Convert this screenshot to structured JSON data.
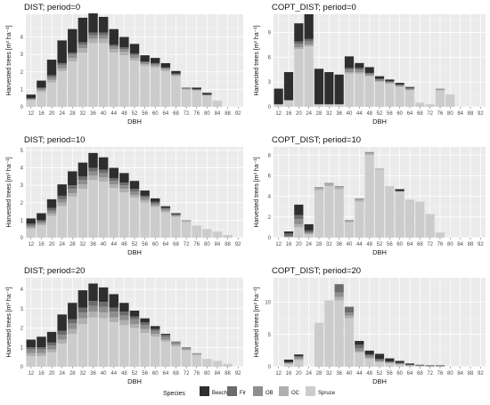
{
  "chart_data": [
    {
      "type": "bar",
      "stacked": true,
      "title": "DIST; period=0",
      "xlabel": "DBH",
      "ylabel": "Harvested trees [m³ ha⁻¹]",
      "ylim": [
        0,
        5.3
      ],
      "yticks": [
        0,
        1,
        2,
        3,
        4
      ],
      "categories": [
        "12",
        "16",
        "20",
        "24",
        "28",
        "32",
        "36",
        "40",
        "44",
        "48",
        "52",
        "56",
        "60",
        "64",
        "68",
        "72",
        "76",
        "80",
        "84",
        "88",
        "92"
      ],
      "series": [
        {
          "name": "Spruce",
          "values": [
            0.4,
            0.85,
            1.4,
            2.05,
            2.6,
            3.1,
            3.65,
            3.65,
            3.1,
            2.95,
            2.65,
            2.35,
            2.25,
            2.05,
            1.75,
            1.0,
            0.95,
            0.65,
            0.35,
            0,
            0
          ]
        },
        {
          "name": "OC",
          "values": [
            0,
            0.1,
            0.15,
            0.15,
            0.2,
            0.25,
            0.25,
            0.25,
            0.2,
            0.2,
            0.15,
            0.1,
            0.1,
            0.1,
            0.05,
            0,
            0,
            0,
            0,
            0,
            0
          ]
        },
        {
          "name": "OB",
          "values": [
            0.05,
            0.1,
            0.15,
            0.2,
            0.2,
            0.2,
            0.2,
            0.2,
            0.15,
            0.15,
            0.15,
            0.1,
            0.1,
            0.05,
            0.05,
            0.05,
            0.05,
            0.05,
            0,
            0,
            0
          ]
        },
        {
          "name": "Fir",
          "values": [
            0.05,
            0.05,
            0.1,
            0.1,
            0.1,
            0.15,
            0.15,
            0.15,
            0.1,
            0.1,
            0.1,
            0.05,
            0.05,
            0.05,
            0.05,
            0.05,
            0,
            0,
            0,
            0,
            0
          ]
        },
        {
          "name": "Beech",
          "values": [
            0.2,
            0.4,
            0.9,
            1.3,
            1.35,
            1.4,
            1.1,
            0.9,
            0.9,
            0.6,
            0.55,
            0.35,
            0.3,
            0.25,
            0.15,
            0,
            0.1,
            0.1,
            0,
            0,
            0
          ]
        }
      ]
    },
    {
      "type": "bar",
      "stacked": true,
      "title": "COPT_DIST; period=0",
      "xlabel": "DBH",
      "ylabel": "Harvested trees [m³ ha⁻¹]",
      "ylim": [
        0,
        11.2
      ],
      "yticks": [
        0,
        3,
        6,
        9
      ],
      "categories": [
        "12",
        "16",
        "20",
        "24",
        "28",
        "32",
        "36",
        "40",
        "44",
        "48",
        "52",
        "56",
        "60",
        "64",
        "68",
        "72",
        "76",
        "80",
        "84",
        "88",
        "92"
      ],
      "series": [
        {
          "name": "Spruce",
          "values": [
            0.3,
            0.8,
            7.0,
            7.3,
            0.3,
            0.3,
            0.3,
            4.0,
            4.0,
            3.7,
            3.0,
            2.8,
            2.4,
            2.0,
            0.5,
            0.3,
            2.0,
            1.5,
            0,
            0,
            0
          ]
        },
        {
          "name": "OC",
          "values": [
            0,
            0,
            0.2,
            0.2,
            0,
            0,
            0,
            0.2,
            0.2,
            0.1,
            0.1,
            0.1,
            0.1,
            0.1,
            0,
            0,
            0.1,
            0,
            0,
            0,
            0
          ]
        },
        {
          "name": "OB",
          "values": [
            0,
            0,
            0.4,
            0.4,
            0,
            0,
            0,
            0.3,
            0.3,
            0.2,
            0.2,
            0.1,
            0.1,
            0.1,
            0,
            0,
            0.1,
            0,
            0,
            0,
            0
          ]
        },
        {
          "name": "Fir",
          "values": [
            0,
            0,
            0.3,
            0.3,
            0,
            0,
            0,
            0.2,
            0.2,
            0.1,
            0.1,
            0.1,
            0.1,
            0.1,
            0,
            0,
            0,
            0,
            0,
            0,
            0
          ]
        },
        {
          "name": "Beech",
          "values": [
            1.9,
            3.4,
            2.2,
            3.0,
            4.3,
            3.9,
            3.6,
            1.4,
            0.6,
            0.7,
            0.3,
            0.2,
            0.2,
            0.1,
            0,
            0,
            0,
            0,
            0,
            0,
            0
          ]
        }
      ]
    },
    {
      "type": "bar",
      "stacked": true,
      "title": "DIST; period=10",
      "xlabel": "DBH",
      "ylabel": "Harvested trees [m³ ha⁻¹]",
      "ylim": [
        0,
        5.2
      ],
      "yticks": [
        0,
        1,
        2,
        3,
        4,
        5
      ],
      "categories": [
        "12",
        "16",
        "20",
        "24",
        "28",
        "32",
        "36",
        "40",
        "44",
        "48",
        "52",
        "56",
        "60",
        "64",
        "68",
        "72",
        "76",
        "80",
        "84",
        "88",
        "92"
      ],
      "series": [
        {
          "name": "Spruce",
          "values": [
            0.5,
            0.7,
            1.25,
            1.8,
            2.35,
            2.8,
            3.3,
            3.2,
            2.85,
            2.6,
            2.3,
            2.0,
            1.75,
            1.45,
            1.2,
            0.9,
            0.7,
            0.5,
            0.35,
            0.15,
            0
          ]
        },
        {
          "name": "OC",
          "values": [
            0.1,
            0.1,
            0.15,
            0.2,
            0.2,
            0.25,
            0.25,
            0.25,
            0.2,
            0.2,
            0.15,
            0.15,
            0.1,
            0.1,
            0.05,
            0.05,
            0,
            0,
            0,
            0,
            0
          ]
        },
        {
          "name": "OB",
          "values": [
            0.1,
            0.1,
            0.15,
            0.2,
            0.25,
            0.25,
            0.25,
            0.25,
            0.2,
            0.2,
            0.2,
            0.15,
            0.1,
            0.1,
            0.05,
            0.05,
            0,
            0,
            0,
            0,
            0
          ]
        },
        {
          "name": "Fir",
          "values": [
            0.1,
            0.1,
            0.15,
            0.2,
            0.2,
            0.2,
            0.2,
            0.2,
            0.15,
            0.15,
            0.15,
            0.1,
            0.1,
            0.05,
            0.05,
            0,
            0,
            0,
            0,
            0,
            0
          ]
        },
        {
          "name": "Beech",
          "values": [
            0.3,
            0.4,
            0.5,
            0.65,
            0.8,
            0.8,
            0.85,
            0.7,
            0.6,
            0.55,
            0.45,
            0.3,
            0.2,
            0.1,
            0.05,
            0,
            0,
            0,
            0,
            0,
            0
          ]
        }
      ]
    },
    {
      "type": "bar",
      "stacked": true,
      "title": "COPT_DIST; period=10",
      "xlabel": "DBH",
      "ylabel": "Harvested trees [m³ ha⁻¹]",
      "ylim": [
        0,
        8.8
      ],
      "yticks": [
        0,
        2,
        4,
        6,
        8
      ],
      "categories": [
        "12",
        "16",
        "20",
        "24",
        "28",
        "32",
        "36",
        "40",
        "44",
        "48",
        "52",
        "56",
        "60",
        "64",
        "68",
        "72",
        "76",
        "80",
        "84",
        "88",
        "92"
      ],
      "series": [
        {
          "name": "Spruce",
          "values": [
            0,
            0.1,
            1.0,
            0.3,
            4.6,
            5.0,
            4.7,
            1.5,
            3.5,
            8.0,
            6.6,
            5.0,
            4.5,
            3.7,
            3.5,
            2.3,
            0.5,
            0,
            0,
            0,
            0
          ]
        },
        {
          "name": "OC",
          "values": [
            0,
            0,
            0.3,
            0.1,
            0.2,
            0.2,
            0.2,
            0.1,
            0.2,
            0.2,
            0.1,
            0,
            0,
            0,
            0,
            0,
            0,
            0,
            0,
            0,
            0
          ]
        },
        {
          "name": "OB",
          "values": [
            0,
            0,
            0.5,
            0.1,
            0.1,
            0.1,
            0.1,
            0.1,
            0.1,
            0.1,
            0,
            0,
            0,
            0,
            0,
            0,
            0,
            0,
            0,
            0,
            0
          ]
        },
        {
          "name": "Fir",
          "values": [
            0,
            0.3,
            0.4,
            0.2,
            0,
            0,
            0,
            0,
            0,
            0,
            0,
            0,
            0,
            0,
            0,
            0,
            0,
            0,
            0,
            0,
            0
          ]
        },
        {
          "name": "Beech",
          "values": [
            0,
            0.2,
            1.0,
            0.6,
            0,
            0,
            0,
            0,
            0,
            0,
            0,
            0,
            0.2,
            0,
            0,
            0,
            0,
            0,
            0,
            0,
            0
          ]
        }
      ]
    },
    {
      "type": "bar",
      "stacked": true,
      "title": "DIST; period=20",
      "xlabel": "DBH",
      "ylabel": "Harvested trees [m³ ha⁻¹]",
      "ylim": [
        0,
        4.6
      ],
      "yticks": [
        0,
        1,
        2,
        3,
        4
      ],
      "categories": [
        "12",
        "16",
        "20",
        "24",
        "28",
        "32",
        "36",
        "40",
        "44",
        "48",
        "52",
        "56",
        "60",
        "64",
        "68",
        "72",
        "76",
        "80",
        "84",
        "88",
        "92"
      ],
      "series": [
        {
          "name": "Spruce",
          "values": [
            0.55,
            0.55,
            0.75,
            1.2,
            1.7,
            2.2,
            2.55,
            2.5,
            2.3,
            2.15,
            2.0,
            1.75,
            1.55,
            1.3,
            1.05,
            0.85,
            0.6,
            0.4,
            0.3,
            0.15,
            0
          ]
        },
        {
          "name": "OC",
          "values": [
            0.15,
            0.15,
            0.15,
            0.2,
            0.25,
            0.3,
            0.3,
            0.3,
            0.25,
            0.25,
            0.2,
            0.2,
            0.15,
            0.1,
            0.1,
            0.05,
            0.05,
            0,
            0,
            0,
            0
          ]
        },
        {
          "name": "OB",
          "values": [
            0.2,
            0.2,
            0.2,
            0.25,
            0.3,
            0.3,
            0.3,
            0.3,
            0.3,
            0.25,
            0.25,
            0.2,
            0.15,
            0.15,
            0.1,
            0.05,
            0.05,
            0,
            0,
            0,
            0
          ]
        },
        {
          "name": "Fir",
          "values": [
            0.1,
            0.1,
            0.15,
            0.2,
            0.2,
            0.25,
            0.25,
            0.25,
            0.2,
            0.2,
            0.15,
            0.15,
            0.1,
            0.1,
            0.05,
            0.05,
            0,
            0,
            0,
            0,
            0
          ]
        },
        {
          "name": "Beech",
          "values": [
            0.4,
            0.55,
            0.55,
            0.85,
            0.85,
            0.9,
            0.9,
            0.75,
            0.7,
            0.45,
            0.3,
            0.2,
            0.15,
            0.05,
            0,
            0,
            0,
            0,
            0,
            0,
            0
          ]
        }
      ]
    },
    {
      "type": "bar",
      "stacked": true,
      "title": "COPT_DIST; period=20",
      "xlabel": "DBH",
      "ylabel": "Harvested trees [m³ ha⁻¹]",
      "ylim": [
        0,
        13.8
      ],
      "yticks": [
        0,
        5,
        10
      ],
      "categories": [
        "12",
        "16",
        "20",
        "24",
        "28",
        "32",
        "36",
        "40",
        "44",
        "48",
        "52",
        "56",
        "60",
        "64",
        "68",
        "72",
        "76",
        "80",
        "84",
        "88",
        "92"
      ],
      "series": [
        {
          "name": "Spruce",
          "values": [
            0,
            0.4,
            1.0,
            0,
            6.8,
            10.3,
            10.3,
            7.5,
            2.2,
            1.2,
            0.7,
            0.5,
            0.3,
            0.2,
            0.2,
            0.1,
            0.1,
            0,
            0,
            0,
            0
          ]
        },
        {
          "name": "OC",
          "values": [
            0,
            0.1,
            0.2,
            0,
            0,
            0,
            0.5,
            0.4,
            0.2,
            0.2,
            0.1,
            0.1,
            0.1,
            0,
            0,
            0,
            0,
            0,
            0,
            0,
            0
          ]
        },
        {
          "name": "OB",
          "values": [
            0,
            0.2,
            0.4,
            0,
            0,
            0,
            0.7,
            0.5,
            0.5,
            0.3,
            0.2,
            0.1,
            0.1,
            0.1,
            0,
            0,
            0,
            0,
            0,
            0,
            0
          ]
        },
        {
          "name": "Fir",
          "values": [
            0,
            0,
            0,
            0,
            0,
            0,
            1.3,
            0.9,
            0.5,
            0.2,
            0.2,
            0.1,
            0.1,
            0,
            0,
            0,
            0,
            0,
            0,
            0,
            0
          ]
        },
        {
          "name": "Beech",
          "values": [
            0,
            0.4,
            0.3,
            0,
            0,
            0,
            0,
            0,
            0.6,
            0.6,
            0.8,
            0.5,
            0.3,
            0.2,
            0.1,
            0.1,
            0.1,
            0,
            0,
            0,
            0
          ]
        }
      ]
    }
  ],
  "legend": {
    "title": "Species",
    "items": [
      {
        "name": "Beech",
        "color": "#2e2e2e"
      },
      {
        "name": "Fir",
        "color": "#6b6b6b"
      },
      {
        "name": "OB",
        "color": "#8e8e8e"
      },
      {
        "name": "OC",
        "color": "#b0b0b0"
      },
      {
        "name": "Spruce",
        "color": "#cccccc"
      }
    ]
  },
  "colors": {
    "panel_background": "#ebebeb",
    "grid_major": "#ffffff",
    "grid_minor": "#f4f4f4"
  }
}
